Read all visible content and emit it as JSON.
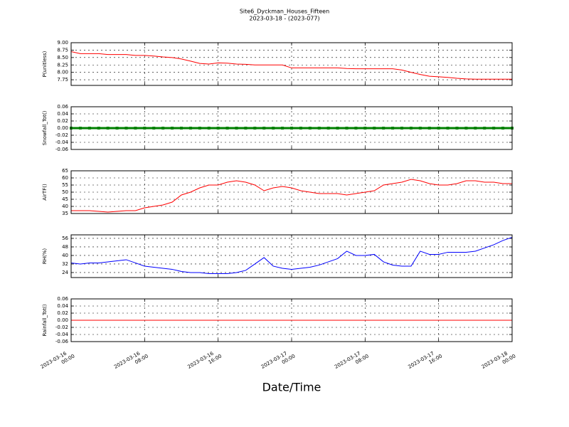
{
  "chart_data": {
    "type": "line",
    "title": "Site6_Dyckman_Houses_Fifteen",
    "subtitle": "2023-03-18 - (2023-077)",
    "xlabel": "Date/Time",
    "grid": true,
    "xlim": [
      "2023-03-16 00:00",
      "2023-03-18 00:00"
    ],
    "xticks": [
      {
        "value": "2023-03-16 00:00",
        "label": [
          "2023-03-16",
          "00:00"
        ]
      },
      {
        "value": "2023-03-16 08:00",
        "label": [
          "2023-03-16",
          "08:00"
        ]
      },
      {
        "value": "2023-03-16 16:00",
        "label": [
          "2023-03-16",
          "16:00"
        ]
      },
      {
        "value": "2023-03-17 00:00",
        "label": [
          "2023-03-17",
          "00:00"
        ]
      },
      {
        "value": "2023-03-17 08:00",
        "label": [
          "2023-03-17",
          "08:00"
        ]
      },
      {
        "value": "2023-03-17 16:00",
        "label": [
          "2023-03-17",
          "16:00"
        ]
      },
      {
        "value": "2023-03-18 00:00",
        "label": [
          "2023-03-18",
          "00:00"
        ]
      }
    ],
    "x": [
      "2023-03-16 00:00",
      "2023-03-16 01:00",
      "2023-03-16 02:00",
      "2023-03-16 03:00",
      "2023-03-16 04:00",
      "2023-03-16 05:00",
      "2023-03-16 06:00",
      "2023-03-16 07:00",
      "2023-03-16 08:00",
      "2023-03-16 09:00",
      "2023-03-16 10:00",
      "2023-03-16 11:00",
      "2023-03-16 12:00",
      "2023-03-16 13:00",
      "2023-03-16 14:00",
      "2023-03-16 15:00",
      "2023-03-16 16:00",
      "2023-03-16 17:00",
      "2023-03-16 18:00",
      "2023-03-16 19:00",
      "2023-03-16 20:00",
      "2023-03-16 21:00",
      "2023-03-16 22:00",
      "2023-03-16 23:00",
      "2023-03-17 00:00",
      "2023-03-17 01:00",
      "2023-03-17 02:00",
      "2023-03-17 03:00",
      "2023-03-17 04:00",
      "2023-03-17 05:00",
      "2023-03-17 06:00",
      "2023-03-17 07:00",
      "2023-03-17 08:00",
      "2023-03-17 09:00",
      "2023-03-17 10:00",
      "2023-03-17 11:00",
      "2023-03-17 12:00",
      "2023-03-17 13:00",
      "2023-03-17 14:00",
      "2023-03-17 15:00",
      "2023-03-17 16:00",
      "2023-03-17 17:00",
      "2023-03-17 18:00",
      "2023-03-17 19:00",
      "2023-03-17 20:00",
      "2023-03-17 21:00",
      "2023-03-17 22:00",
      "2023-03-17 23:00",
      "2023-03-18 00:00"
    ],
    "panels": [
      {
        "ylabel": "P(unitless)",
        "ylim": [
          7.56,
          9.0
        ],
        "yticks": [
          {
            "value": 7.75,
            "label": "7.75"
          },
          {
            "value": 8.0,
            "label": "8.00"
          },
          {
            "value": 8.25,
            "label": "8.25"
          },
          {
            "value": 8.5,
            "label": "8.50"
          },
          {
            "value": 8.75,
            "label": "8.75"
          },
          {
            "value": 9.0,
            "label": "9.00"
          }
        ],
        "series": [
          {
            "color": "#ff0000",
            "marker": false,
            "values": [
              8.7,
              8.63,
              8.63,
              8.63,
              8.6,
              8.6,
              8.6,
              8.57,
              8.57,
              8.55,
              8.52,
              8.5,
              8.45,
              8.38,
              8.3,
              8.28,
              8.32,
              8.31,
              8.28,
              8.27,
              8.25,
              8.25,
              8.25,
              8.25,
              8.15,
              8.15,
              8.15,
              8.15,
              8.15,
              8.15,
              8.13,
              8.12,
              8.12,
              8.12,
              8.12,
              8.12,
              8.08,
              8.0,
              7.93,
              7.87,
              7.85,
              7.83,
              7.8,
              7.78,
              7.77,
              7.77,
              7.77,
              7.77,
              7.77
            ]
          }
        ]
      },
      {
        "ylabel": "Snowfall_Tot()",
        "ylim": [
          -0.06,
          0.06
        ],
        "yticks": [
          -0.06,
          -0.04,
          -0.02,
          {
            "value": 0,
            "label": "0.00"
          },
          0.02,
          0.04,
          0.06
        ],
        "series": [
          {
            "color": "#008000",
            "marker": true,
            "values": [
              0,
              0,
              0,
              0,
              0,
              0,
              0,
              0,
              0,
              0,
              0,
              0,
              0,
              0,
              0,
              0,
              0,
              0,
              0,
              0,
              0,
              0,
              0,
              0,
              0,
              0,
              0,
              0,
              0,
              0,
              0,
              0,
              0,
              0,
              0,
              0,
              0,
              0,
              0,
              0,
              0,
              0,
              0,
              0,
              0,
              0,
              0,
              0,
              0
            ]
          }
        ]
      },
      {
        "ylabel": "AirTF()",
        "ylim": [
          35,
          65
        ],
        "yticks": [
          35,
          40,
          45,
          50,
          55,
          60,
          65
        ],
        "series": [
          {
            "color": "#ff0000",
            "marker": false,
            "values": [
              37,
              37,
              37,
              36.5,
              36,
              36.5,
              37,
              37,
              39,
              40,
              41,
              43,
              48,
              50,
              53,
              55,
              55,
              57,
              58,
              57,
              55,
              51,
              53,
              54,
              53,
              51,
              50,
              49,
              49,
              49,
              48,
              49,
              50,
              51,
              55,
              56,
              57,
              59,
              58,
              56,
              55,
              55,
              56,
              58,
              58,
              57,
              57,
              56,
              56
            ]
          }
        ]
      },
      {
        "ylabel": "RH(%)",
        "ylim": [
          19.3,
          59.3
        ],
        "yticks": [
          24,
          32,
          40,
          48,
          56
        ],
        "series": [
          {
            "color": "#0000ff",
            "marker": false,
            "values": [
              33,
              32,
              33,
              33,
              34,
              35,
              36,
              33,
              30,
              29,
              28,
              27,
              25,
              24,
              24,
              23,
              23,
              23,
              24,
              26,
              32,
              38,
              30,
              28,
              27,
              28,
              29,
              31,
              34,
              37,
              44,
              40,
              40,
              41,
              34,
              31,
              30,
              30,
              44,
              41,
              41,
              43,
              43,
              43,
              44,
              47,
              50,
              54,
              57
            ]
          }
        ]
      },
      {
        "ylabel": "Rainfall_Tot()",
        "ylim": [
          -0.06,
          0.06
        ],
        "yticks": [
          -0.06,
          -0.04,
          -0.02,
          {
            "value": 0,
            "label": "0.00"
          },
          0.02,
          0.04,
          0.06
        ],
        "series": [
          {
            "color": "#ff0000",
            "marker": false,
            "values": [
              0,
              0,
              0,
              0,
              0,
              0,
              0,
              0,
              0,
              0,
              0,
              0,
              0,
              0,
              0,
              0,
              0,
              0,
              0,
              0,
              0,
              0,
              0,
              0,
              0,
              0,
              0,
              0,
              0,
              0,
              0,
              0,
              0,
              0,
              0,
              0,
              0,
              0,
              0,
              0,
              0,
              0,
              0,
              0,
              0,
              0,
              0,
              0,
              0
            ]
          }
        ]
      }
    ]
  }
}
